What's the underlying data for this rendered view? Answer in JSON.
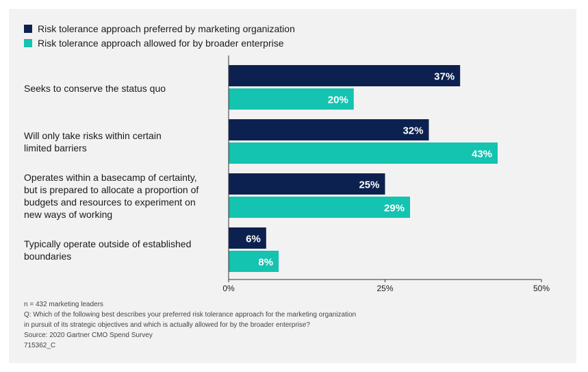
{
  "colors": {
    "panel": "#f2f2f2",
    "series1": "#0d2150",
    "series2": "#14c3b0",
    "axis": "#333333"
  },
  "chart_data": {
    "type": "bar",
    "orientation": "horizontal",
    "categories": [
      "Seeks to conserve the status quo",
      "Will only take risks within certain limited barriers",
      "Operates within a basecamp of certainty, but is prepared to allocate a proportion of budgets and resources to experiment on new ways of working",
      "Typically operate outside of established boundaries"
    ],
    "category_lines": [
      [
        "Seeks to conserve the status quo"
      ],
      [
        "Will only take risks within certain",
        "limited barriers"
      ],
      [
        "Operates within a basecamp of certainty,",
        "but is prepared to allocate a proportion of",
        "budgets and resources to experiment on",
        "new ways of working"
      ],
      [
        "Typically operate outside of established",
        "boundaries"
      ]
    ],
    "series": [
      {
        "name": "Risk tolerance approach preferred by marketing organization",
        "values": [
          37,
          32,
          25,
          6
        ]
      },
      {
        "name": "Risk tolerance approach allowed for by broader enterprise",
        "values": [
          20,
          43,
          29,
          8
        ]
      }
    ],
    "xlim": [
      0,
      50
    ],
    "xticks": [
      0,
      25,
      50
    ],
    "tick_labels": [
      "0%",
      "25%",
      "50%"
    ],
    "value_suffix": "%",
    "legend_position": "top-left"
  },
  "notes": {
    "sample": "n = 432 marketing leaders",
    "question_line1": "Q: Which of the following best describes your preferred risk tolerance approach for the marketing organization",
    "question_line2": "in pursuit of its strategic objectives and which is actually allowed for by the broader enterprise?",
    "source": "Source: 2020 Gartner CMO Spend Survey",
    "id": "715362_C"
  }
}
